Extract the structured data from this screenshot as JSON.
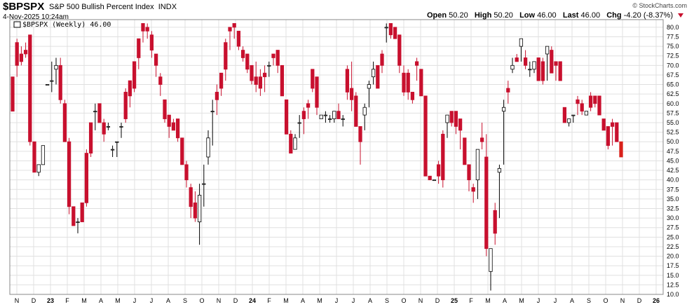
{
  "header": {
    "symbol": "$BPSPX",
    "name": "S&P 500 Bullish Percent Index",
    "exchange": "INDX",
    "date": "4-Nov-2025 10:24am",
    "brand": "© StockCharts.com",
    "open_label": "Open",
    "open": "50.20",
    "high_label": "High",
    "high": "50.20",
    "low_label": "Low",
    "low": "46.00",
    "last_label": "Last",
    "last": "46.00",
    "chg_label": "Chg",
    "chg": "-4.20 (-8.37%)"
  },
  "colors": {
    "up": "#ffffff",
    "down": "#c8102e",
    "outline": "#000000",
    "last": "#d9211a",
    "grid": "#e0e0e0"
  },
  "chart_data": {
    "type": "candlestick",
    "legend": "$BPSPX (Weekly) 46.00",
    "ylim": [
      10,
      82
    ],
    "yticks": [
      10.0,
      12.5,
      15.0,
      17.5,
      20.0,
      22.5,
      25.0,
      27.5,
      30.0,
      32.5,
      35.0,
      37.5,
      40.0,
      42.5,
      45.0,
      47.5,
      50.0,
      52.5,
      55.0,
      57.5,
      60.0,
      62.5,
      65.0,
      67.5,
      70.0,
      72.5,
      75.0,
      77.5,
      80.0
    ],
    "x_labels": [
      {
        "label": "N",
        "year": false
      },
      {
        "label": "D",
        "year": false
      },
      {
        "label": "23",
        "year": true
      },
      {
        "label": "F",
        "year": false
      },
      {
        "label": "M",
        "year": false
      },
      {
        "label": "A",
        "year": false
      },
      {
        "label": "M",
        "year": false
      },
      {
        "label": "J",
        "year": false
      },
      {
        "label": "J",
        "year": false
      },
      {
        "label": "A",
        "year": false
      },
      {
        "label": "S",
        "year": false
      },
      {
        "label": "O",
        "year": false
      },
      {
        "label": "N",
        "year": false
      },
      {
        "label": "D",
        "year": false
      },
      {
        "label": "24",
        "year": true
      },
      {
        "label": "F",
        "year": false
      },
      {
        "label": "M",
        "year": false
      },
      {
        "label": "A",
        "year": false
      },
      {
        "label": "M",
        "year": false
      },
      {
        "label": "J",
        "year": false
      },
      {
        "label": "J",
        "year": false
      },
      {
        "label": "A",
        "year": false
      },
      {
        "label": "S",
        "year": false
      },
      {
        "label": "O",
        "year": false
      },
      {
        "label": "N",
        "year": false
      },
      {
        "label": "D",
        "year": false
      },
      {
        "label": "25",
        "year": true
      },
      {
        "label": "F",
        "year": false
      },
      {
        "label": "M",
        "year": false
      },
      {
        "label": "A",
        "year": false
      },
      {
        "label": "M",
        "year": false
      },
      {
        "label": "J",
        "year": false
      },
      {
        "label": "J",
        "year": false
      },
      {
        "label": "A",
        "year": false
      },
      {
        "label": "S",
        "year": false
      },
      {
        "label": "O",
        "year": false
      },
      {
        "label": "N",
        "year": false
      },
      {
        "label": "D",
        "year": false
      },
      {
        "label": "26",
        "year": true
      }
    ],
    "bars": [
      [
        67,
        67,
        58,
        58
      ],
      [
        76,
        77,
        67,
        70
      ],
      [
        73,
        75,
        70,
        71
      ],
      [
        74,
        76,
        72,
        73
      ],
      [
        78,
        78,
        49,
        50
      ],
      [
        50,
        50,
        42,
        42
      ],
      [
        42,
        44,
        41,
        44
      ],
      [
        44,
        49,
        44,
        49
      ],
      [
        65,
        65,
        65,
        65
      ],
      [
        66,
        71,
        63,
        66
      ],
      [
        69,
        72,
        65,
        70
      ],
      [
        70,
        72,
        60,
        61
      ],
      [
        60,
        61,
        50,
        50
      ],
      [
        50,
        51,
        31,
        33
      ],
      [
        33,
        33,
        28,
        28
      ],
      [
        29,
        30,
        26,
        29
      ],
      [
        34,
        34,
        29,
        29
      ],
      [
        47,
        48,
        33,
        34
      ],
      [
        55,
        55,
        46,
        47
      ],
      [
        58,
        60,
        53,
        58
      ],
      [
        60,
        60,
        55,
        55
      ],
      [
        55,
        56,
        50,
        52
      ],
      [
        54,
        55,
        53,
        54
      ],
      [
        48,
        49,
        46,
        48
      ],
      [
        50,
        50,
        46,
        50
      ],
      [
        54,
        55,
        51,
        54
      ],
      [
        63,
        64,
        55,
        56
      ],
      [
        66,
        66,
        59,
        62
      ],
      [
        71,
        71,
        63,
        64
      ],
      [
        77,
        77,
        69,
        72
      ],
      [
        81,
        81,
        76,
        79
      ],
      [
        80,
        81,
        77,
        79
      ],
      [
        78,
        79,
        72,
        74
      ],
      [
        73,
        73,
        67,
        70
      ],
      [
        67,
        68,
        62,
        65
      ],
      [
        61,
        61,
        55,
        56
      ],
      [
        57,
        57,
        51,
        54
      ],
      [
        55,
        56,
        53,
        53
      ],
      [
        56,
        56,
        50,
        51
      ],
      [
        51,
        51,
        44,
        44
      ],
      [
        44,
        45,
        38,
        40
      ],
      [
        38,
        39,
        30,
        33
      ],
      [
        34,
        37,
        29,
        30
      ],
      [
        29,
        39,
        23,
        36
      ],
      [
        39,
        44,
        33,
        39
      ],
      [
        46,
        53,
        44,
        51
      ],
      [
        58,
        61,
        49,
        58
      ],
      [
        63,
        65,
        57,
        61
      ],
      [
        68,
        68,
        62,
        64
      ],
      [
        76,
        77,
        66,
        69
      ],
      [
        80,
        80,
        74,
        79
      ],
      [
        81,
        81,
        77,
        80
      ],
      [
        79,
        79,
        74,
        75
      ],
      [
        74,
        75,
        71,
        72
      ],
      [
        73,
        73,
        68,
        69
      ],
      [
        70,
        70,
        65,
        66
      ],
      [
        67,
        71,
        63,
        65
      ],
      [
        67,
        69,
        62,
        64
      ],
      [
        68,
        70,
        63,
        67
      ],
      [
        70,
        71,
        67,
        70
      ],
      [
        73,
        73,
        70,
        72
      ],
      [
        74,
        74,
        68,
        70
      ],
      [
        70,
        70,
        62,
        62
      ],
      [
        61,
        61,
        52,
        52
      ],
      [
        52,
        53,
        47,
        47
      ],
      [
        48,
        52,
        48,
        51
      ],
      [
        55,
        57,
        51,
        55
      ],
      [
        58,
        59,
        52,
        56
      ],
      [
        60,
        61,
        56,
        59
      ],
      [
        69,
        69,
        63,
        64
      ],
      [
        67,
        67,
        57,
        59
      ],
      [
        56,
        57,
        56,
        57
      ],
      [
        57,
        58,
        55,
        57
      ],
      [
        56,
        57,
        55,
        56
      ],
      [
        56,
        58,
        55,
        58
      ],
      [
        58,
        60,
        56,
        56
      ],
      [
        56,
        57,
        54,
        56
      ],
      [
        69,
        70,
        61,
        63
      ],
      [
        64,
        71,
        58,
        61
      ],
      [
        62,
        63,
        54,
        54
      ],
      [
        54,
        54,
        44,
        50
      ],
      [
        57,
        60,
        53,
        59
      ],
      [
        64,
        66,
        59,
        65
      ],
      [
        67,
        71,
        65,
        69
      ],
      [
        70,
        70,
        64,
        64
      ],
      [
        73,
        74,
        68,
        70
      ],
      [
        80,
        81,
        76,
        80
      ],
      [
        81,
        81,
        77,
        78
      ],
      [
        80,
        80,
        77,
        77
      ],
      [
        78,
        78,
        68,
        70
      ],
      [
        68,
        70,
        62,
        63
      ],
      [
        68,
        69,
        61,
        63
      ],
      [
        63,
        63,
        60,
        61
      ],
      [
        71,
        72,
        66,
        70
      ],
      [
        69,
        69,
        62,
        62
      ],
      [
        62,
        62,
        41,
        41
      ],
      [
        41,
        41,
        40,
        40
      ],
      [
        40,
        40,
        40,
        40
      ],
      [
        44,
        45,
        39,
        41
      ],
      [
        52,
        53,
        38,
        40
      ],
      [
        55,
        57,
        51,
        57
      ],
      [
        58,
        58,
        54,
        55
      ],
      [
        58,
        58,
        52,
        54
      ],
      [
        56,
        56,
        48,
        53
      ],
      [
        51,
        51,
        44,
        44
      ],
      [
        44,
        44,
        37,
        40
      ],
      [
        38,
        39,
        34,
        37
      ],
      [
        40,
        48,
        35,
        48
      ],
      [
        51,
        55,
        48,
        50
      ],
      [
        46,
        52,
        20,
        22
      ],
      [
        16,
        22,
        11,
        22
      ],
      [
        32,
        34,
        23,
        26
      ],
      [
        42,
        44,
        30,
        43
      ],
      [
        58,
        61,
        44,
        59
      ],
      [
        64,
        66,
        60,
        63
      ],
      [
        69,
        72,
        68,
        70
      ],
      [
        72,
        73,
        71,
        71
      ],
      [
        75,
        76,
        71,
        77
      ],
      [
        72,
        74,
        69,
        70
      ],
      [
        69,
        71,
        67,
        69
      ],
      [
        69,
        70,
        68,
        71
      ],
      [
        72,
        71,
        69,
        66
      ],
      [
        71,
        72,
        65,
        66
      ],
      [
        73,
        75,
        66,
        75
      ],
      [
        74,
        75,
        68,
        68
      ],
      [
        71,
        71,
        66,
        70
      ],
      [
        71,
        71,
        66,
        66
      ],
      [
        59,
        59,
        55,
        55
      ],
      [
        55,
        56,
        54,
        56
      ],
      [
        57,
        57,
        55,
        57
      ],
      [
        61,
        62,
        57,
        60
      ],
      [
        60,
        61,
        57,
        58
      ],
      [
        57,
        58,
        57,
        58
      ],
      [
        62,
        63,
        58,
        59
      ],
      [
        62,
        62,
        59,
        60
      ],
      [
        62,
        62,
        57,
        57
      ],
      [
        56,
        56,
        53,
        53
      ],
      [
        54,
        54,
        48,
        49
      ],
      [
        55,
        56,
        49,
        54
      ],
      [
        55,
        55,
        50,
        50
      ],
      [
        50,
        50,
        46,
        46
      ]
    ]
  }
}
